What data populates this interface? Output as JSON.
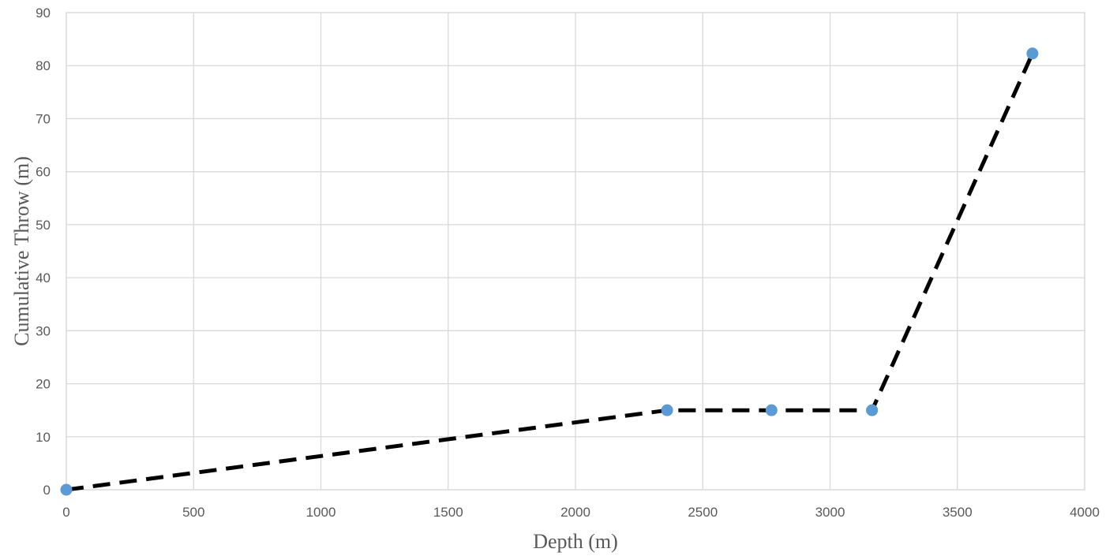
{
  "chart_data": {
    "type": "scatter",
    "title": "",
    "xlabel": "Depth (m)",
    "ylabel": "Cumulative Throw (m)",
    "xlim": [
      0,
      4000
    ],
    "ylim": [
      0,
      90
    ],
    "x_ticks": [
      0,
      500,
      1000,
      1500,
      2000,
      2500,
      3000,
      3500,
      4000
    ],
    "y_ticks": [
      0,
      10,
      20,
      30,
      40,
      50,
      60,
      70,
      80,
      90
    ],
    "grid": true,
    "legend": "none",
    "series": [
      {
        "points": [
          {
            "x": 0,
            "y": 0
          },
          {
            "x": 2360,
            "y": 15
          },
          {
            "x": 2770,
            "y": 15
          },
          {
            "x": 3165,
            "y": 15
          },
          {
            "x": 3795,
            "y": 82.3
          }
        ],
        "marker_color": "#5b9bd5"
      }
    ],
    "trendline": {
      "style": "dashed",
      "color": "#000000",
      "points": [
        {
          "x": 0,
          "y": 0
        },
        {
          "x": 2360,
          "y": 15
        },
        {
          "x": 3165,
          "y": 15
        },
        {
          "x": 3795,
          "y": 82.3
        }
      ]
    }
  }
}
